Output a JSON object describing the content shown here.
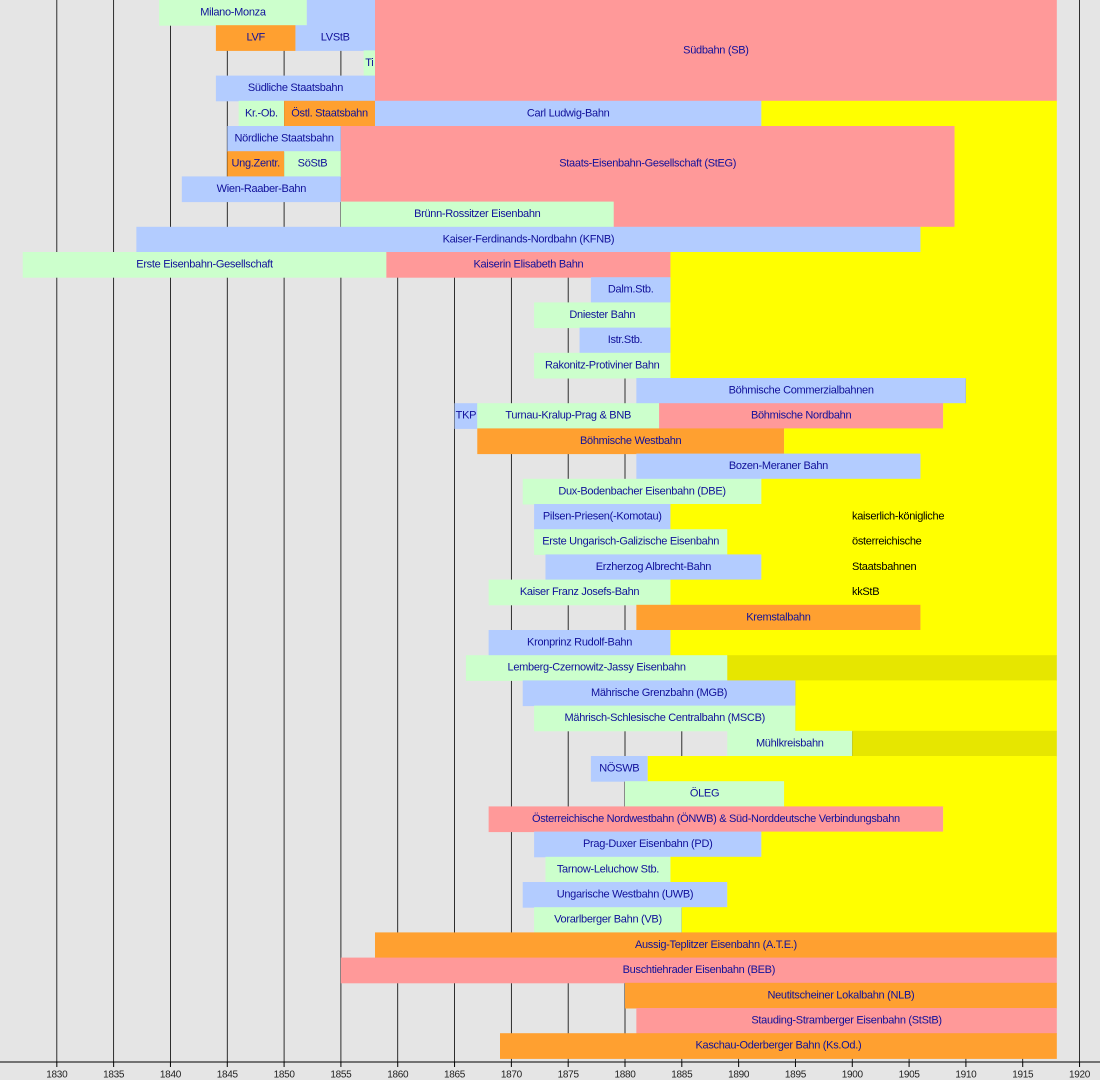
{
  "chart_data": {
    "type": "timeline",
    "xlim": [
      1825,
      1921.8
    ],
    "xticks": [
      1830,
      1835,
      1840,
      1845,
      1850,
      1855,
      1860,
      1865,
      1870,
      1875,
      1880,
      1885,
      1890,
      1895,
      1900,
      1905,
      1910,
      1915,
      1920
    ],
    "grid": true,
    "bars": [
      {
        "label": "Milano-Monza",
        "row": 0,
        "start": 1839,
        "end": 1852,
        "color": "#ccffcc"
      },
      {
        "row": 0,
        "start": 1852,
        "end": 1858,
        "color": "#b3ccff"
      },
      {
        "label": "LVF",
        "row": 1,
        "start": 1844,
        "end": 1851,
        "color": "#ffa030"
      },
      {
        "label": "LVStB",
        "row": 1,
        "start": 1851,
        "end": 1858,
        "color": "#b3ccff"
      },
      {
        "label": "Ti",
        "row": 2,
        "start": 1857,
        "end": 1858,
        "color": "#ccffcc"
      },
      {
        "label": "Südbahn (SB)",
        "row": 0,
        "span": 4,
        "start": 1858,
        "end": 1918,
        "color": "#ff9999"
      },
      {
        "label": "Südliche Staatsbahn",
        "row": 3,
        "start": 1844,
        "end": 1858,
        "color": "#b3ccff"
      },
      {
        "label": "Kr.-Ob.",
        "row": 4,
        "start": 1846,
        "end": 1850,
        "color": "#ccffcc"
      },
      {
        "label": "Östl. Staatsbahn",
        "row": 4,
        "start": 1850,
        "end": 1858,
        "color": "#ffa030"
      },
      {
        "label": "Carl Ludwig-Bahn",
        "row": 4,
        "start": 1858,
        "end": 1892,
        "color": "#b3ccff"
      },
      {
        "row": 4,
        "start": 1892,
        "end": 1918,
        "color": "#ffff00"
      },
      {
        "label": "Nördliche Staatsbahn",
        "row": 5,
        "start": 1845,
        "end": 1855,
        "color": "#b3ccff"
      },
      {
        "label": "Staats-Eisenbahn-Gesellschaft (StEG)",
        "row": 5,
        "span": 3,
        "start": 1855,
        "end": 1909,
        "color": "#ff9999"
      },
      {
        "row": 8,
        "start": 1879,
        "end": 1909,
        "color": "#ff9999"
      },
      {
        "row": 5,
        "span": 4,
        "start": 1909,
        "end": 1918,
        "color": "#ffff00"
      },
      {
        "label": "Ung.Zentr.",
        "row": 6,
        "start": 1845,
        "end": 1850,
        "color": "#ffa030"
      },
      {
        "label": "SöStB",
        "row": 6,
        "start": 1850,
        "end": 1855,
        "color": "#ccffcc"
      },
      {
        "label": "Wien-Raaber-Bahn",
        "row": 7,
        "start": 1841,
        "end": 1855,
        "color": "#b3ccff"
      },
      {
        "label": "Brünn-Rossitzer Eisenbahn",
        "row": 8,
        "start": 1855,
        "end": 1879,
        "color": "#ccffcc"
      },
      {
        "label": "Kaiser-Ferdinands-Nordbahn (KFNB)",
        "row": 9,
        "start": 1837,
        "end": 1906,
        "color": "#b3ccff"
      },
      {
        "row": 9,
        "start": 1906,
        "end": 1918,
        "color": "#ffff00"
      },
      {
        "label": "Erste Eisenbahn-Gesellschaft",
        "row": 10,
        "start": 1827,
        "end": 1859,
        "color": "#ccffcc"
      },
      {
        "label": "Kaiserin Elisabeth Bahn",
        "row": 10,
        "start": 1859,
        "end": 1884,
        "color": "#ff9999"
      },
      {
        "row": 10,
        "span": 5,
        "start": 1884,
        "end": 1918,
        "color": "#ffff00"
      },
      {
        "label": "Dalm.Stb.",
        "row": 11,
        "start": 1877,
        "end": 1884,
        "color": "#b3ccff"
      },
      {
        "label": "Dniester Bahn",
        "row": 12,
        "start": 1872,
        "end": 1884,
        "color": "#ccffcc"
      },
      {
        "label": "Istr.Stb.",
        "row": 13,
        "start": 1876,
        "end": 1884,
        "color": "#b3ccff"
      },
      {
        "label": "Rakonitz-Protiviner Bahn",
        "row": 14,
        "start": 1872,
        "end": 1884,
        "color": "#ccffcc"
      },
      {
        "label": "Böhmische Commerzialbahnen",
        "row": 15,
        "start": 1881,
        "end": 1910,
        "color": "#b3ccff"
      },
      {
        "row": 15,
        "start": 1910,
        "end": 1918,
        "color": "#ffff00"
      },
      {
        "label": "TKP",
        "row": 16,
        "start": 1865,
        "end": 1867,
        "color": "#b3ccff"
      },
      {
        "label": "Turnau-Kralup-Prag & BNB",
        "row": 16,
        "start": 1867,
        "end": 1883,
        "color": "#ccffcc"
      },
      {
        "label": "Böhmische Nordbahn",
        "row": 16,
        "start": 1883,
        "end": 1908,
        "color": "#ff9999"
      },
      {
        "row": 16,
        "start": 1908,
        "end": 1918,
        "color": "#ffff00"
      },
      {
        "label": "Böhmische Westbahn",
        "row": 17,
        "start": 1867,
        "end": 1894,
        "color": "#ffa030"
      },
      {
        "row": 17,
        "start": 1894,
        "end": 1918,
        "color": "#ffff00"
      },
      {
        "label": "Bozen-Meraner Bahn",
        "row": 18,
        "start": 1881,
        "end": 1906,
        "color": "#b3ccff"
      },
      {
        "row": 18,
        "start": 1906,
        "end": 1918,
        "color": "#ffff00"
      },
      {
        "label": "Dux-Bodenbacher Eisenbahn (DBE)",
        "row": 19,
        "start": 1871,
        "end": 1892,
        "color": "#ccffcc"
      },
      {
        "row": 19,
        "start": 1892,
        "end": 1918,
        "color": "#ffff00"
      },
      {
        "label": "Pilsen-Priesen(-Komotau)",
        "row": 20,
        "start": 1872,
        "end": 1884,
        "color": "#b3ccff"
      },
      {
        "row": 20,
        "start": 1884,
        "end": 1918,
        "color": "#ffff00"
      },
      {
        "label": "Erste Ungarisch-Galizische Eisenbahn",
        "row": 21,
        "start": 1872,
        "end": 1889,
        "color": "#ccffcc"
      },
      {
        "row": 21,
        "start": 1889,
        "end": 1918,
        "color": "#ffff00"
      },
      {
        "label": "Erzherzog Albrecht-Bahn",
        "row": 22,
        "start": 1873,
        "end": 1892,
        "color": "#b3ccff"
      },
      {
        "row": 22,
        "start": 1892,
        "end": 1918,
        "color": "#ffff00"
      },
      {
        "label": "Kaiser Franz Josefs-Bahn",
        "row": 23,
        "start": 1868,
        "end": 1884,
        "color": "#ccffcc"
      },
      {
        "row": 23,
        "start": 1884,
        "end": 1918,
        "color": "#ffff00"
      },
      {
        "label": "Kremstalbahn",
        "row": 24,
        "start": 1881,
        "end": 1906,
        "color": "#ffa030"
      },
      {
        "row": 24,
        "start": 1906,
        "end": 1918,
        "color": "#ffff00"
      },
      {
        "label": "Kronprinz Rudolf-Bahn",
        "row": 25,
        "start": 1868,
        "end": 1884,
        "color": "#b3ccff"
      },
      {
        "row": 25,
        "start": 1884,
        "end": 1918,
        "color": "#ffff00"
      },
      {
        "label": "Lemberg-Czernowitz-Jassy Eisenbahn",
        "row": 26,
        "start": 1866,
        "end": 1889,
        "color": "#ccffcc"
      },
      {
        "row": 26,
        "start": 1889,
        "end": 1918,
        "color": "#e6e600"
      },
      {
        "label": "Mährische Grenzbahn (MGB)",
        "row": 27,
        "start": 1871,
        "end": 1895,
        "color": "#b3ccff"
      },
      {
        "row": 27,
        "start": 1895,
        "end": 1918,
        "color": "#ffff00"
      },
      {
        "label": "Mährisch-Schlesische Centralbahn (MSCB)",
        "row": 28,
        "start": 1872,
        "end": 1895,
        "color": "#ccffcc"
      },
      {
        "row": 28,
        "start": 1895,
        "end": 1918,
        "color": "#ffff00"
      },
      {
        "label": "Mühlkreisbahn",
        "row": 29,
        "start": 1889,
        "end": 1900,
        "color": "#ccffcc"
      },
      {
        "row": 29,
        "start": 1900,
        "end": 1918,
        "color": "#e6e600"
      },
      {
        "label": "NÖSWB",
        "row": 30,
        "start": 1877,
        "end": 1882,
        "color": "#b3ccff"
      },
      {
        "row": 30,
        "start": 1882,
        "end": 1918,
        "color": "#ffff00"
      },
      {
        "label": "ÖLEG",
        "row": 31,
        "start": 1880,
        "end": 1894,
        "color": "#ccffcc"
      },
      {
        "row": 31,
        "start": 1894,
        "end": 1918,
        "color": "#ffff00"
      },
      {
        "label": "Österreichische Nordwestbahn (ÖNWB) & Süd-Norddeutsche Verbindungsbahn",
        "row": 32,
        "start": 1868,
        "end": 1908,
        "color": "#ff9999"
      },
      {
        "row": 32,
        "start": 1908,
        "end": 1918,
        "color": "#ffff00"
      },
      {
        "label": "Prag-Duxer Eisenbahn (PD)",
        "row": 33,
        "start": 1872,
        "end": 1892,
        "color": "#b3ccff"
      },
      {
        "row": 33,
        "start": 1892,
        "end": 1918,
        "color": "#ffff00"
      },
      {
        "label": "Tarnow-Leluchow Stb.",
        "row": 34,
        "start": 1873,
        "end": 1884,
        "color": "#ccffcc"
      },
      {
        "row": 34,
        "start": 1884,
        "end": 1918,
        "color": "#ffff00"
      },
      {
        "label": "Ungarische Westbahn (UWB)",
        "row": 35,
        "start": 1871,
        "end": 1889,
        "color": "#b3ccff"
      },
      {
        "row": 35,
        "start": 1889,
        "end": 1918,
        "color": "#ffff00"
      },
      {
        "label": "Vorarlberger Bahn (VB)",
        "row": 36,
        "start": 1872,
        "end": 1885,
        "color": "#ccffcc"
      },
      {
        "row": 36,
        "start": 1885,
        "end": 1918,
        "color": "#ffff00"
      },
      {
        "label": "Aussig-Teplitzer Eisenbahn (A.T.E.)",
        "row": 37,
        "start": 1858,
        "end": 1918,
        "color": "#ffa030"
      },
      {
        "label": "Buschtiehrader Eisenbahn (BEB)",
        "row": 38,
        "start": 1855,
        "end": 1918,
        "color": "#ff9999"
      },
      {
        "label": "Neutitscheiner Lokalbahn (NLB)",
        "row": 39,
        "start": 1880,
        "end": 1918,
        "color": "#ffa030"
      },
      {
        "label": "Stauding-Stramberger Eisenbahn (StStB)",
        "row": 40,
        "start": 1881,
        "end": 1918,
        "color": "#ff9999"
      },
      {
        "label": "Kaschau-Oderberger Bahn (Ks.Od.)",
        "row": 41,
        "start": 1869,
        "end": 1918,
        "color": "#ffa030"
      }
    ],
    "annotations": [
      "kaiserlich-königliche",
      "österreichische",
      "Staatsbahnen",
      "kkStB"
    ]
  }
}
